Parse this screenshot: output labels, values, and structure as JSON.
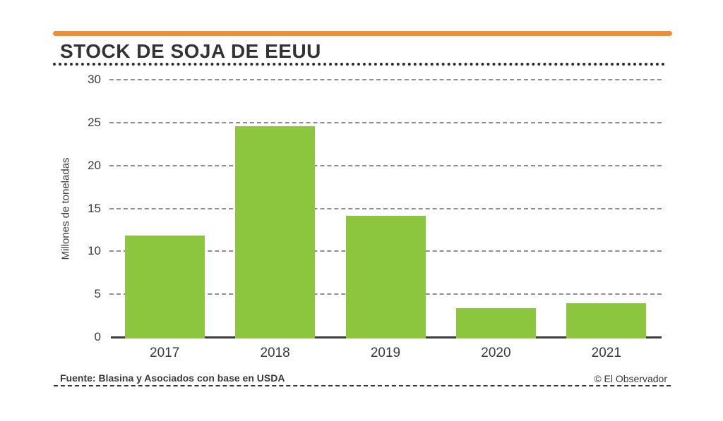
{
  "page": {
    "title": "STOCK DE SOJA DE EEUU",
    "source": "Fuente: Blasina y Asociados con base en USDA",
    "copyright": "© El Observador"
  },
  "colors": {
    "accent_orange": "#ee8e35",
    "bar_green": "#8cc63f",
    "text_dark": "#3a3a3a",
    "gridline_gray": "#8f8f8f"
  },
  "chart_data": {
    "type": "bar",
    "title": "STOCK DE SOJA DE EEUU",
    "categories": [
      "2017",
      "2018",
      "2019",
      "2020",
      "2021"
    ],
    "values": [
      12,
      24.7,
      14.3,
      3.5,
      4.1
    ],
    "xlabel": "",
    "ylabel": "Millones de toneladas",
    "ylim": [
      0,
      30
    ],
    "yticks": [
      0,
      5,
      10,
      15,
      20,
      25,
      30
    ],
    "grid": "horizontal-dashed",
    "legend": "none",
    "bar_color": "#8cc63f",
    "source": "Fuente: Blasina y Asociados con base en USDA",
    "credit": "© El Observador"
  }
}
